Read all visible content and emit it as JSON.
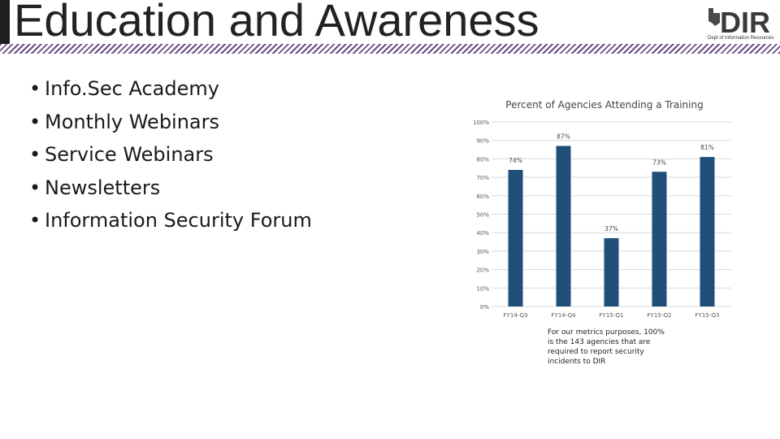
{
  "slide": {
    "title": "Education and Awareness",
    "logo_text": "DIR",
    "logo_subtitle": "Dept of Information Resources",
    "bullets": [
      "Info.Sec Academy",
      "Monthly Webinars",
      "Service Webinars",
      "Newsletters",
      "Information Security Forum"
    ],
    "footnote": "For our metrics purposes, 100% is the 143 agencies that are required to report security incidents to DIR"
  },
  "chart_data": {
    "type": "bar",
    "title": "Percent of Agencies Attending a Training",
    "categories": [
      "FY14-Q3",
      "FY14-Q4",
      "FY15-Q1",
      "FY15-Q2",
      "FY15-Q3"
    ],
    "values": [
      74,
      87,
      37,
      73,
      81
    ],
    "value_labels": [
      "74%",
      "87%",
      "37%",
      "73%",
      "81%"
    ],
    "xlabel": "",
    "ylabel": "",
    "ylim": [
      0,
      100
    ],
    "yticks": [
      0,
      10,
      20,
      30,
      40,
      50,
      60,
      70,
      80,
      90,
      100
    ],
    "ytick_labels": [
      "0%",
      "10%",
      "20%",
      "30%",
      "40%",
      "50%",
      "60%",
      "70%",
      "80%",
      "90%",
      "100%"
    ],
    "grid": true,
    "bar_color": "#1f4e79"
  }
}
